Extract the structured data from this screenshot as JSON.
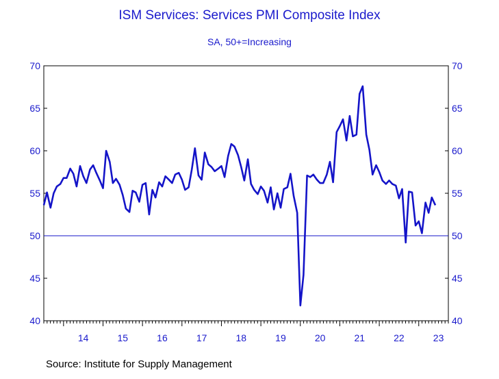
{
  "chart_data": {
    "type": "line",
    "title": "ISM Services: Services PMI Composite Index",
    "subtitle": "SA, 50+=Increasing",
    "source": "Source:  Institute for Supply Management",
    "ylim": [
      40,
      70
    ],
    "yticks": [
      "40",
      "45",
      "50",
      "55",
      "60",
      "65",
      "70"
    ],
    "xlim": [
      2013.5,
      2023.75
    ],
    "xtick_labels": [
      "14",
      "15",
      "16",
      "17",
      "18",
      "19",
      "20",
      "21",
      "22",
      "23"
    ],
    "reference_line": 50,
    "grid": false,
    "colors": {
      "series": "#1414c8",
      "text": "#1a1acc",
      "axis": "#000000"
    },
    "series": [
      {
        "x": [
          2013.5,
          2013.58,
          2013.67,
          2013.75,
          2013.83,
          2013.92,
          2014.0,
          2014.08,
          2014.17,
          2014.25,
          2014.33,
          2014.42,
          2014.5,
          2014.58,
          2014.67,
          2014.75,
          2014.83,
          2014.92,
          2015.0,
          2015.08,
          2015.17,
          2015.25,
          2015.33,
          2015.42,
          2015.5,
          2015.58,
          2015.67,
          2015.75,
          2015.83,
          2015.92,
          2016.0,
          2016.08,
          2016.17,
          2016.25,
          2016.33,
          2016.42,
          2016.5,
          2016.58,
          2016.67,
          2016.75,
          2016.83,
          2016.92,
          2017.0,
          2017.08,
          2017.17,
          2017.25,
          2017.33,
          2017.42,
          2017.5,
          2017.58,
          2017.67,
          2017.75,
          2017.83,
          2017.92,
          2018.0,
          2018.08,
          2018.17,
          2018.25,
          2018.33,
          2018.42,
          2018.5,
          2018.58,
          2018.67,
          2018.75,
          2018.83,
          2018.92,
          2019.0,
          2019.08,
          2019.17,
          2019.25,
          2019.33,
          2019.42,
          2019.5,
          2019.58,
          2019.67,
          2019.75,
          2019.83,
          2019.92,
          2020.0,
          2020.08,
          2020.17,
          2020.25,
          2020.33,
          2020.42,
          2020.5,
          2020.58,
          2020.67,
          2020.75,
          2020.83,
          2020.92,
          2021.0,
          2021.08,
          2021.17,
          2021.25,
          2021.33,
          2021.42,
          2021.5,
          2021.58,
          2021.67,
          2021.75,
          2021.83,
          2021.92,
          2022.0,
          2022.08,
          2022.17,
          2022.25,
          2022.33,
          2022.42,
          2022.5,
          2022.58,
          2022.67,
          2022.75,
          2022.83,
          2022.92,
          2023.0,
          2023.08,
          2023.17,
          2023.25,
          2023.33,
          2023.42,
          2023.5
        ],
        "values": [
          53.6,
          55.1,
          53.3,
          55.0,
          55.8,
          56.1,
          56.8,
          56.8,
          57.9,
          57.3,
          55.8,
          58.2,
          57.0,
          56.2,
          57.8,
          58.3,
          57.4,
          56.5,
          55.6,
          60.0,
          58.7,
          56.2,
          56.7,
          56.0,
          54.8,
          53.2,
          52.8,
          55.3,
          55.1,
          54.0,
          56.0,
          56.2,
          52.5,
          55.4,
          54.5,
          56.3,
          55.8,
          57.0,
          56.6,
          56.2,
          57.2,
          57.4,
          56.6,
          55.4,
          55.7,
          57.8,
          60.3,
          57.1,
          56.6,
          59.8,
          58.4,
          58.1,
          57.6,
          57.9,
          58.2,
          56.9,
          59.4,
          60.8,
          60.5,
          59.5,
          58.1,
          56.5,
          59.0,
          56.1,
          55.4,
          54.9,
          55.8,
          55.3,
          53.9,
          55.7,
          53.1,
          55.0,
          53.3,
          55.5,
          55.7,
          57.3,
          54.7,
          52.7,
          41.8,
          45.4,
          57.1,
          56.9,
          57.2,
          56.6,
          56.2,
          56.2,
          57.2,
          58.7,
          56.3,
          62.2,
          62.9,
          63.7,
          61.2,
          64.1,
          61.7,
          61.9,
          66.7,
          67.6,
          61.9,
          60.1,
          57.2,
          58.3,
          57.5,
          56.5,
          56.1,
          56.5,
          56.1,
          55.9,
          54.4,
          55.5,
          49.2,
          55.2,
          55.1,
          51.2,
          51.7,
          50.3,
          53.9,
          52.7,
          54.5,
          53.6,
          null
        ]
      }
    ]
  }
}
